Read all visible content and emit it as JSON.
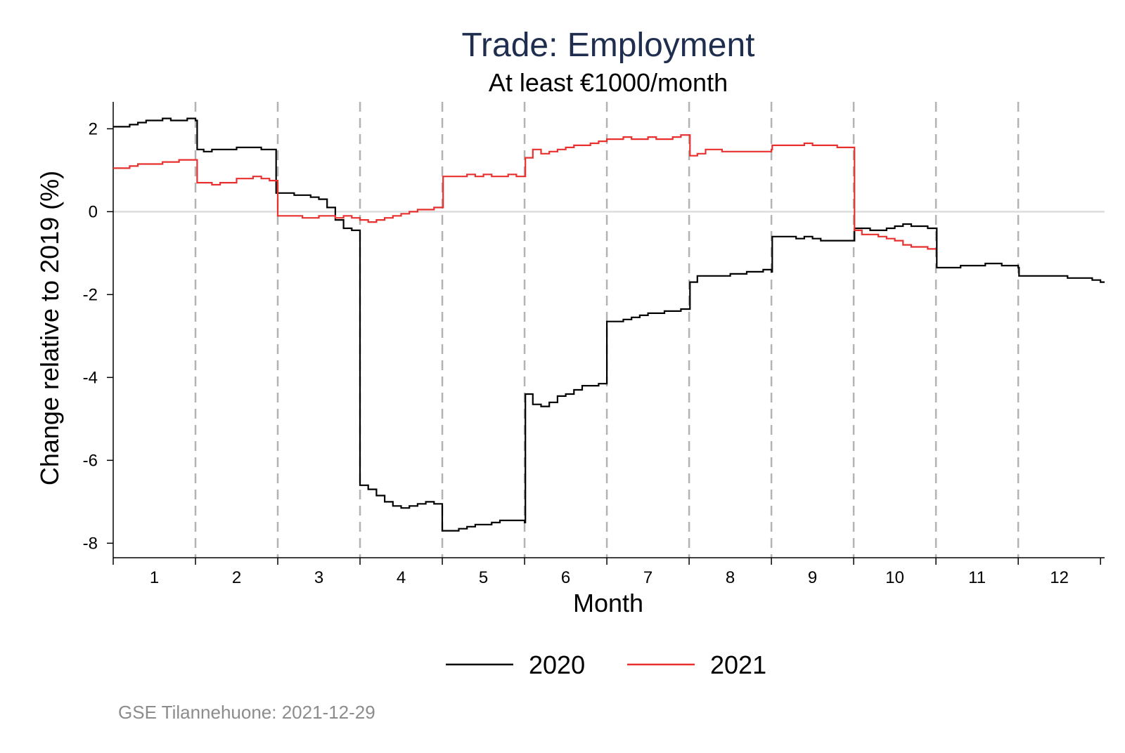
{
  "chart_data": {
    "type": "line",
    "title": "Trade: Employment",
    "subtitle": "At least €1000/month",
    "xlabel": "Month",
    "ylabel": "Change relative to 2019 (%)",
    "x_ticks": [
      "1",
      "2",
      "3",
      "4",
      "5",
      "6",
      "7",
      "8",
      "9",
      "10",
      "11",
      "12"
    ],
    "y_ticks": [
      2,
      0,
      -2,
      -4,
      -6,
      -8
    ],
    "ylim": [
      -8.35,
      2.65
    ],
    "xlim": [
      0.5,
      12.55
    ],
    "grid": false,
    "zero_line": true,
    "month_separators": true,
    "legend_position": "bottom",
    "note": "GSE Tilannehuone: 2021-12-29",
    "series": [
      {
        "name": "2020",
        "color": "#000000",
        "x": [
          0.5,
          0.6,
          0.7,
          0.8,
          0.9,
          1.0,
          1.1,
          1.2,
          1.3,
          1.4,
          1.5,
          1.52,
          1.6,
          1.7,
          1.8,
          1.9,
          2.0,
          2.1,
          2.2,
          2.3,
          2.4,
          2.47,
          2.48,
          2.6,
          2.7,
          2.8,
          2.9,
          3.0,
          3.1,
          3.2,
          3.3,
          3.4,
          3.5,
          3.5,
          3.6,
          3.7,
          3.8,
          3.9,
          4.0,
          4.1,
          4.2,
          4.3,
          4.4,
          4.5,
          4.5,
          4.6,
          4.7,
          4.8,
          4.9,
          5.0,
          5.1,
          5.2,
          5.3,
          5.4,
          5.5,
          5.51,
          5.6,
          5.7,
          5.8,
          5.9,
          6.0,
          6.1,
          6.2,
          6.3,
          6.4,
          6.5,
          6.5,
          6.6,
          6.7,
          6.8,
          6.9,
          7.0,
          7.1,
          7.2,
          7.3,
          7.4,
          7.5,
          7.51,
          7.6,
          7.7,
          7.8,
          7.9,
          8.0,
          8.1,
          8.2,
          8.3,
          8.4,
          8.5,
          8.51,
          8.6,
          8.7,
          8.8,
          8.9,
          9.0,
          9.1,
          9.2,
          9.3,
          9.4,
          9.5,
          9.51,
          9.6,
          9.7,
          9.8,
          9.9,
          10.0,
          10.1,
          10.2,
          10.3,
          10.4,
          10.5,
          10.51,
          10.6,
          10.7,
          10.8,
          10.9,
          11.0,
          11.1,
          11.2,
          11.3,
          11.4,
          11.5,
          11.51,
          11.6,
          11.7,
          11.8,
          11.9,
          12.0,
          12.1,
          12.2,
          12.3,
          12.4,
          12.5,
          12.55
        ],
        "values": [
          2.05,
          2.05,
          2.1,
          2.15,
          2.2,
          2.2,
          2.25,
          2.2,
          2.2,
          2.25,
          2.2,
          1.5,
          1.45,
          1.5,
          1.5,
          1.5,
          1.55,
          1.55,
          1.55,
          1.5,
          1.5,
          1.5,
          0.45,
          0.45,
          0.4,
          0.4,
          0.35,
          0.3,
          0.1,
          -0.2,
          -0.4,
          -0.45,
          -0.5,
          -6.6,
          -6.7,
          -6.85,
          -7.0,
          -7.1,
          -7.15,
          -7.1,
          -7.05,
          -7.0,
          -7.05,
          -7.05,
          -7.7,
          -7.7,
          -7.65,
          -7.6,
          -7.55,
          -7.55,
          -7.5,
          -7.45,
          -7.45,
          -7.45,
          -7.5,
          -4.4,
          -4.65,
          -4.7,
          -4.6,
          -4.45,
          -4.4,
          -4.3,
          -4.2,
          -4.2,
          -4.15,
          -4.1,
          -2.65,
          -2.65,
          -2.6,
          -2.55,
          -2.5,
          -2.45,
          -2.45,
          -2.4,
          -2.4,
          -2.35,
          -2.35,
          -1.7,
          -1.55,
          -1.55,
          -1.55,
          -1.55,
          -1.5,
          -1.5,
          -1.45,
          -1.45,
          -1.4,
          -1.45,
          -0.6,
          -0.6,
          -0.6,
          -0.65,
          -0.6,
          -0.65,
          -0.7,
          -0.7,
          -0.7,
          -0.7,
          -0.7,
          -0.4,
          -0.4,
          -0.45,
          -0.45,
          -0.4,
          -0.35,
          -0.3,
          -0.35,
          -0.35,
          -0.4,
          -0.4,
          -1.35,
          -1.35,
          -1.35,
          -1.3,
          -1.3,
          -1.3,
          -1.25,
          -1.25,
          -1.3,
          -1.3,
          -1.35,
          -1.55,
          -1.55,
          -1.55,
          -1.55,
          -1.55,
          -1.55,
          -1.6,
          -1.6,
          -1.6,
          -1.65,
          -1.7,
          -1.7
        ]
      },
      {
        "name": "2021",
        "color": "#e8302f",
        "x": [
          0.5,
          0.6,
          0.7,
          0.8,
          0.9,
          1.0,
          1.1,
          1.2,
          1.3,
          1.4,
          1.5,
          1.52,
          1.6,
          1.7,
          1.8,
          1.9,
          2.0,
          2.1,
          2.2,
          2.3,
          2.4,
          2.48,
          2.5,
          2.6,
          2.7,
          2.8,
          2.9,
          3.0,
          3.1,
          3.2,
          3.3,
          3.4,
          3.5,
          3.5,
          3.6,
          3.7,
          3.8,
          3.9,
          4.0,
          4.1,
          4.2,
          4.3,
          4.4,
          4.5,
          4.51,
          4.6,
          4.7,
          4.8,
          4.9,
          5.0,
          5.1,
          5.2,
          5.3,
          5.4,
          5.5,
          5.51,
          5.6,
          5.7,
          5.8,
          5.9,
          6.0,
          6.1,
          6.2,
          6.3,
          6.4,
          6.5,
          6.5,
          6.6,
          6.7,
          6.8,
          6.9,
          7.0,
          7.1,
          7.2,
          7.3,
          7.4,
          7.5,
          7.51,
          7.6,
          7.7,
          7.8,
          7.9,
          8.0,
          8.1,
          8.2,
          8.3,
          8.4,
          8.5,
          8.51,
          8.6,
          8.7,
          8.8,
          8.9,
          9.0,
          9.1,
          9.2,
          9.3,
          9.4,
          9.5,
          9.51,
          9.6,
          9.7,
          9.8,
          9.9,
          10.0,
          10.1,
          10.2,
          10.3,
          10.4,
          10.5
        ],
        "values": [
          1.05,
          1.05,
          1.1,
          1.15,
          1.15,
          1.15,
          1.2,
          1.2,
          1.25,
          1.25,
          1.25,
          0.7,
          0.7,
          0.65,
          0.7,
          0.7,
          0.8,
          0.8,
          0.85,
          0.8,
          0.75,
          0.75,
          -0.1,
          -0.1,
          -0.1,
          -0.15,
          -0.15,
          -0.1,
          -0.1,
          -0.15,
          -0.1,
          -0.15,
          -0.15,
          -0.2,
          -0.25,
          -0.2,
          -0.15,
          -0.1,
          -0.05,
          0.0,
          0.05,
          0.05,
          0.1,
          0.1,
          0.85,
          0.85,
          0.85,
          0.9,
          0.85,
          0.9,
          0.85,
          0.85,
          0.9,
          0.85,
          0.85,
          1.3,
          1.5,
          1.4,
          1.45,
          1.5,
          1.55,
          1.6,
          1.6,
          1.65,
          1.7,
          1.7,
          1.75,
          1.75,
          1.8,
          1.75,
          1.75,
          1.8,
          1.75,
          1.75,
          1.8,
          1.85,
          1.85,
          1.35,
          1.4,
          1.5,
          1.5,
          1.45,
          1.45,
          1.45,
          1.45,
          1.45,
          1.45,
          1.5,
          1.6,
          1.6,
          1.6,
          1.6,
          1.65,
          1.6,
          1.6,
          1.6,
          1.55,
          1.55,
          1.55,
          -0.45,
          -0.55,
          -0.55,
          -0.6,
          -0.65,
          -0.7,
          -0.8,
          -0.85,
          -0.85,
          -0.9,
          -0.9
        ]
      }
    ]
  }
}
